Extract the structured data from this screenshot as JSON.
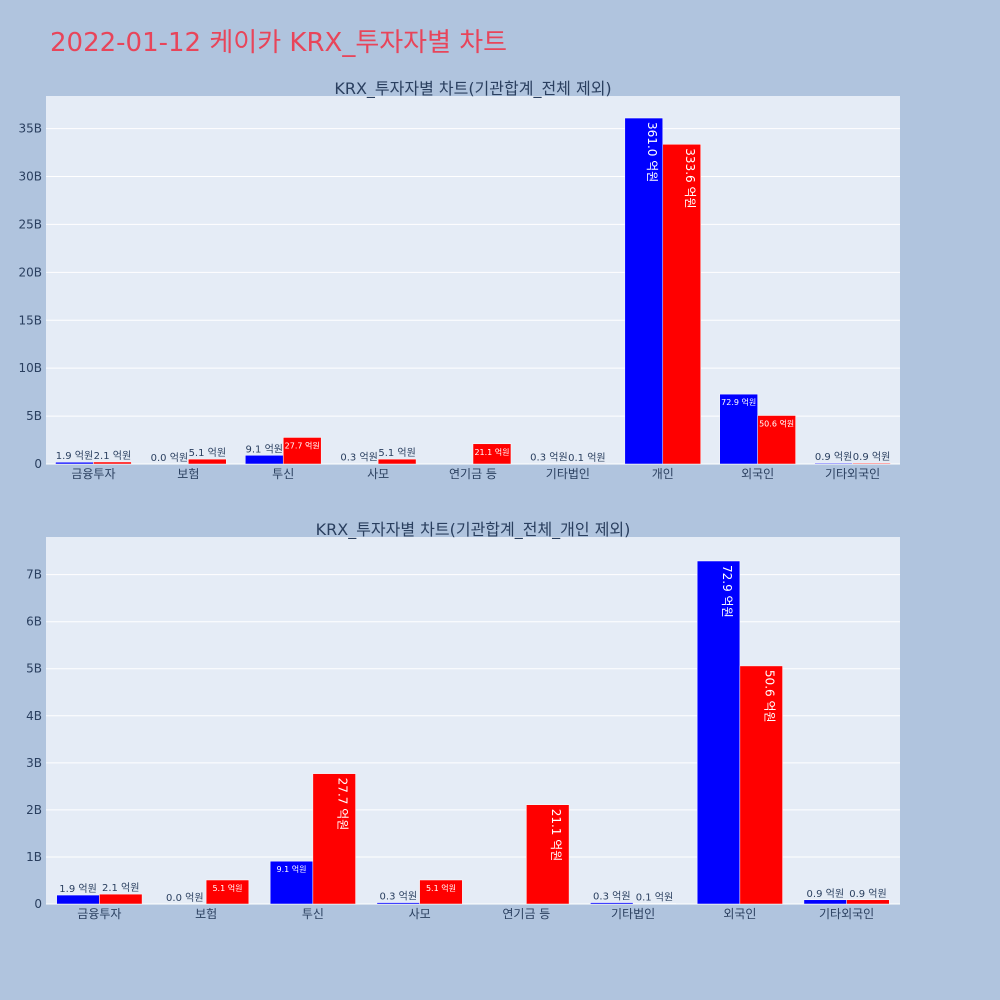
{
  "title": "2022-01-12 케이카 KRX_투자자별 차트",
  "colors": {
    "buy": "#0000ff",
    "sell": "#ff0000",
    "plot_bg": "#e5ecf6",
    "page_bg": "#b0c4de",
    "title": "#e8455a"
  },
  "chart_data": [
    {
      "type": "bar",
      "title": "KRX_투자자별 차트(기관합계_전체 제외)",
      "categories": [
        "금융투자",
        "보험",
        "투신",
        "사모",
        "연기금 등",
        "기타법인",
        "개인",
        "외국인",
        "기타외국인"
      ],
      "series": [
        {
          "color": "#0000ff",
          "values": [
            0.19,
            0.0,
            0.91,
            0.03,
            0.0,
            0.03,
            36.1,
            7.29,
            0.09
          ],
          "labels": [
            "1.9 억원",
            "0.0 억원",
            "9.1 억원",
            "0.3 억원",
            "",
            "0.3 억원",
            "361.0 억원",
            "72.9 억원",
            "0.9 억원"
          ]
        },
        {
          "color": "#ff0000",
          "values": [
            0.21,
            0.51,
            2.77,
            0.51,
            2.11,
            0.01,
            33.36,
            5.06,
            0.09
          ],
          "labels": [
            "2.1 억원",
            "5.1 억원",
            "27.7 억원",
            "5.1 억원",
            "21.1 억원",
            "0.1 억원",
            "333.6 억원",
            "50.6 억원",
            "0.9 억원"
          ]
        }
      ],
      "yticks": [
        0,
        5,
        10,
        15,
        20,
        25,
        30,
        35
      ],
      "ytick_labels": [
        "0",
        "5B",
        "10B",
        "15B",
        "20B",
        "25B",
        "30B",
        "35B"
      ],
      "ylim": [
        0,
        38.4
      ],
      "grid": true
    },
    {
      "type": "bar",
      "title": "KRX_투자자별 차트(기관합계_전체_개인 제외)",
      "categories": [
        "금융투자",
        "보험",
        "투신",
        "사모",
        "연기금 등",
        "기타법인",
        "외국인",
        "기타외국인"
      ],
      "series": [
        {
          "color": "#0000ff",
          "values": [
            0.19,
            0.0,
            0.91,
            0.03,
            0.0,
            0.03,
            7.29,
            0.09
          ],
          "labels": [
            "1.9 억원",
            "0.0 억원",
            "9.1 억원",
            "0.3 억원",
            "",
            "0.3 억원",
            "72.9 억원",
            "0.9 억원"
          ]
        },
        {
          "color": "#ff0000",
          "values": [
            0.21,
            0.51,
            2.77,
            0.51,
            2.11,
            0.01,
            5.06,
            0.09
          ],
          "labels": [
            "2.1 억원",
            "5.1 억원",
            "27.7 억원",
            "5.1 억원",
            "21.1 억원",
            "0.1 억원",
            "50.6 억원",
            "0.9 억원"
          ]
        }
      ],
      "yticks": [
        0,
        1,
        2,
        3,
        4,
        5,
        6,
        7
      ],
      "ytick_labels": [
        "0",
        "1B",
        "2B",
        "3B",
        "4B",
        "5B",
        "6B",
        "7B"
      ],
      "ylim": [
        0,
        7.8
      ],
      "grid": true
    }
  ]
}
